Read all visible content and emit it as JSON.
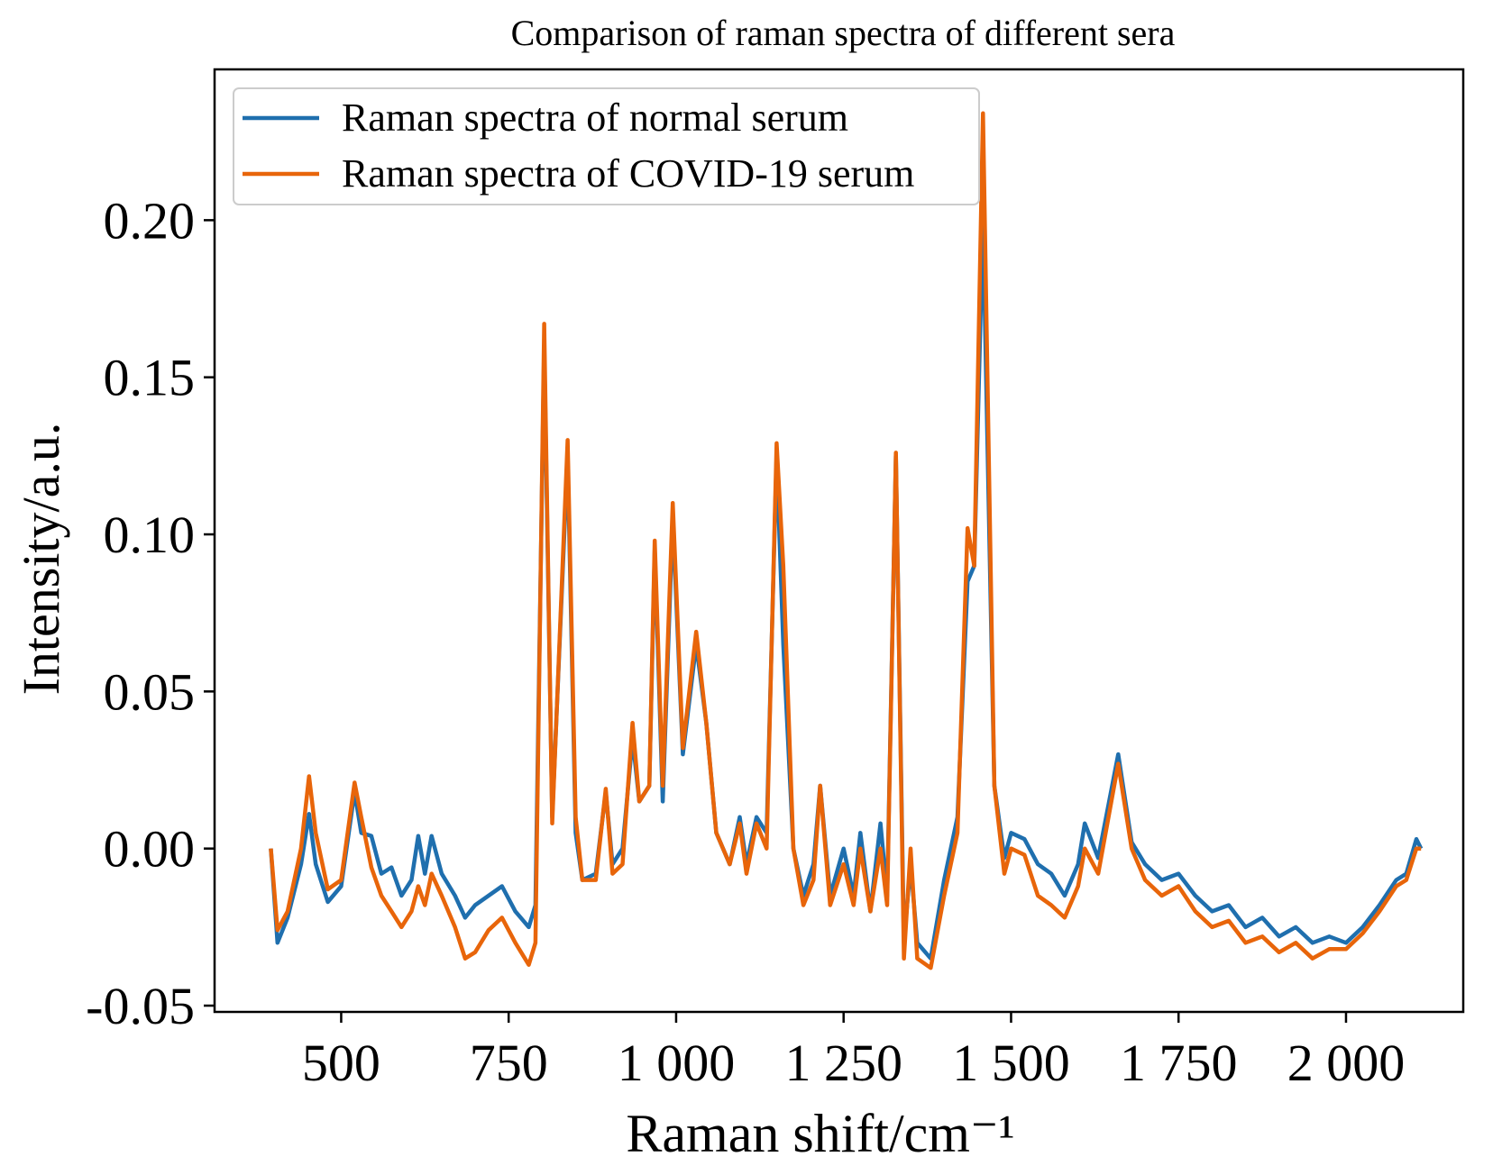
{
  "chart_data": {
    "type": "line",
    "title": "Comparison of raman spectra of different sera",
    "xlabel": "Raman shift/cm⁻¹",
    "ylabel": "Intensity/a.u.",
    "x": [
      395,
      405,
      420,
      440,
      452,
      462,
      480,
      500,
      520,
      530,
      545,
      560,
      575,
      590,
      605,
      615,
      625,
      635,
      650,
      670,
      685,
      700,
      720,
      740,
      760,
      780,
      790,
      803,
      815,
      838,
      850,
      860,
      880,
      895,
      905,
      920,
      935,
      945,
      960,
      968,
      980,
      995,
      1010,
      1030,
      1045,
      1060,
      1080,
      1095,
      1105,
      1120,
      1135,
      1150,
      1160,
      1175,
      1190,
      1205,
      1215,
      1230,
      1250,
      1265,
      1275,
      1290,
      1305,
      1315,
      1328,
      1340,
      1350,
      1360,
      1380,
      1400,
      1420,
      1435,
      1445,
      1458,
      1475,
      1490,
      1500,
      1520,
      1540,
      1560,
      1580,
      1600,
      1610,
      1630,
      1660,
      1680,
      1700,
      1725,
      1750,
      1775,
      1800,
      1825,
      1850,
      1875,
      1900,
      1925,
      1950,
      1975,
      2000,
      2025,
      2050,
      2075,
      2090,
      2105,
      2112
    ],
    "series": [
      {
        "name": "Raman spectra of normal serum",
        "color": "#1f6fae",
        "values": [
          0.0,
          -0.03,
          -0.022,
          -0.005,
          0.011,
          -0.005,
          -0.017,
          -0.012,
          0.018,
          0.005,
          0.004,
          -0.008,
          -0.006,
          -0.015,
          -0.01,
          0.004,
          -0.008,
          0.004,
          -0.008,
          -0.015,
          -0.022,
          -0.018,
          -0.015,
          -0.012,
          -0.02,
          -0.025,
          -0.018,
          0.16,
          0.01,
          0.125,
          0.005,
          -0.01,
          -0.008,
          0.018,
          -0.005,
          0.0,
          0.035,
          0.015,
          0.02,
          0.095,
          0.015,
          0.105,
          0.03,
          0.065,
          0.04,
          0.005,
          -0.005,
          0.01,
          -0.005,
          0.01,
          0.005,
          0.125,
          0.065,
          0.0,
          -0.015,
          -0.005,
          0.02,
          -0.015,
          0.0,
          -0.015,
          0.005,
          -0.02,
          0.008,
          -0.015,
          0.125,
          -0.03,
          -0.005,
          -0.03,
          -0.035,
          -0.01,
          0.01,
          0.085,
          0.09,
          0.2,
          0.02,
          -0.003,
          0.005,
          0.003,
          -0.005,
          -0.008,
          -0.015,
          -0.005,
          0.008,
          -0.003,
          0.03,
          0.002,
          -0.005,
          -0.01,
          -0.008,
          -0.015,
          -0.02,
          -0.018,
          -0.025,
          -0.022,
          -0.028,
          -0.025,
          -0.03,
          -0.028,
          -0.03,
          -0.025,
          -0.018,
          -0.01,
          -0.008,
          0.003,
          0.0
        ]
      },
      {
        "name": "Raman spectra of COVID-19 serum",
        "color": "#e8650a",
        "values": [
          0.0,
          -0.026,
          -0.02,
          0.0,
          0.023,
          0.005,
          -0.013,
          -0.01,
          0.021,
          0.01,
          -0.006,
          -0.015,
          -0.02,
          -0.025,
          -0.02,
          -0.012,
          -0.018,
          -0.008,
          -0.015,
          -0.025,
          -0.035,
          -0.033,
          -0.026,
          -0.022,
          -0.03,
          -0.037,
          -0.03,
          0.167,
          0.008,
          0.13,
          0.01,
          -0.01,
          -0.01,
          0.019,
          -0.008,
          -0.005,
          0.04,
          0.015,
          0.02,
          0.098,
          0.02,
          0.11,
          0.032,
          0.069,
          0.04,
          0.005,
          -0.005,
          0.008,
          -0.008,
          0.008,
          0.0,
          0.129,
          0.09,
          0.0,
          -0.018,
          -0.01,
          0.02,
          -0.018,
          -0.005,
          -0.018,
          0.0,
          -0.02,
          0.0,
          -0.018,
          0.126,
          -0.035,
          0.0,
          -0.035,
          -0.038,
          -0.015,
          0.005,
          0.102,
          0.09,
          0.234,
          0.02,
          -0.008,
          0.0,
          -0.002,
          -0.015,
          -0.018,
          -0.022,
          -0.012,
          0.0,
          -0.008,
          0.027,
          0.0,
          -0.01,
          -0.015,
          -0.012,
          -0.02,
          -0.025,
          -0.023,
          -0.03,
          -0.028,
          -0.033,
          -0.03,
          -0.035,
          -0.032,
          -0.032,
          -0.027,
          -0.02,
          -0.012,
          -0.01,
          0.0,
          0.0
        ]
      }
    ],
    "xlim": [
      311,
      2175
    ],
    "xticks": [
      500,
      750,
      {
        "value": 1000,
        "label": "1 000"
      },
      {
        "value": 1250,
        "label": "1 250"
      },
      {
        "value": 1500,
        "label": "1 500"
      },
      {
        "value": 1750,
        "label": "1 750"
      },
      {
        "value": 2000,
        "label": "2 000"
      }
    ],
    "ylim": [
      -0.052,
      0.248
    ],
    "yticks": [
      {
        "value": -0.05,
        "label": "-0.05"
      },
      {
        "value": 0,
        "label": "0.00"
      },
      {
        "value": 0.05,
        "label": "0.05"
      },
      {
        "value": 0.1,
        "label": "0.10"
      },
      {
        "value": 0.15,
        "label": "0.15"
      },
      {
        "value": 0.2,
        "label": "0.20"
      }
    ],
    "grid": false,
    "legend": "upper left"
  }
}
